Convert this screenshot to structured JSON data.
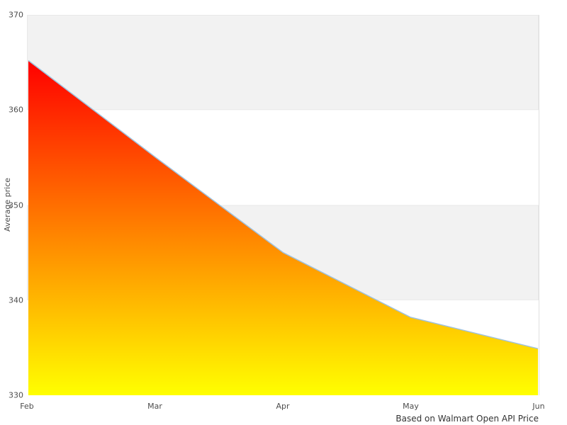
{
  "chart_data": {
    "type": "area",
    "categories": [
      "Feb",
      "Mar",
      "Apr",
      "May",
      "Jun"
    ],
    "values": [
      365.2,
      355.0,
      345.0,
      338.2,
      334.9
    ],
    "series_name": "Average price",
    "title": "",
    "xlabel": "",
    "ylabel": "Average price",
    "ylim": [
      330,
      370
    ],
    "yticks": [
      330,
      340,
      350,
      360,
      370
    ],
    "grid": "alternating horizontal bands (gray/white), no vertical gridlines",
    "legend": "none",
    "caption": "Based on Walmart Open API Price"
  },
  "colors": {
    "band_fill": "#f2f2f2",
    "band_border": "#e8e8e8",
    "plot_right_border": "#e0e0e0",
    "line": "#9fc2de",
    "area_gradient_top": "#ff0000",
    "area_gradient_bottom": "#ffff00",
    "tick_text": "#4d4d4d",
    "caption_text": "#333333",
    "background": "#ffffff"
  }
}
